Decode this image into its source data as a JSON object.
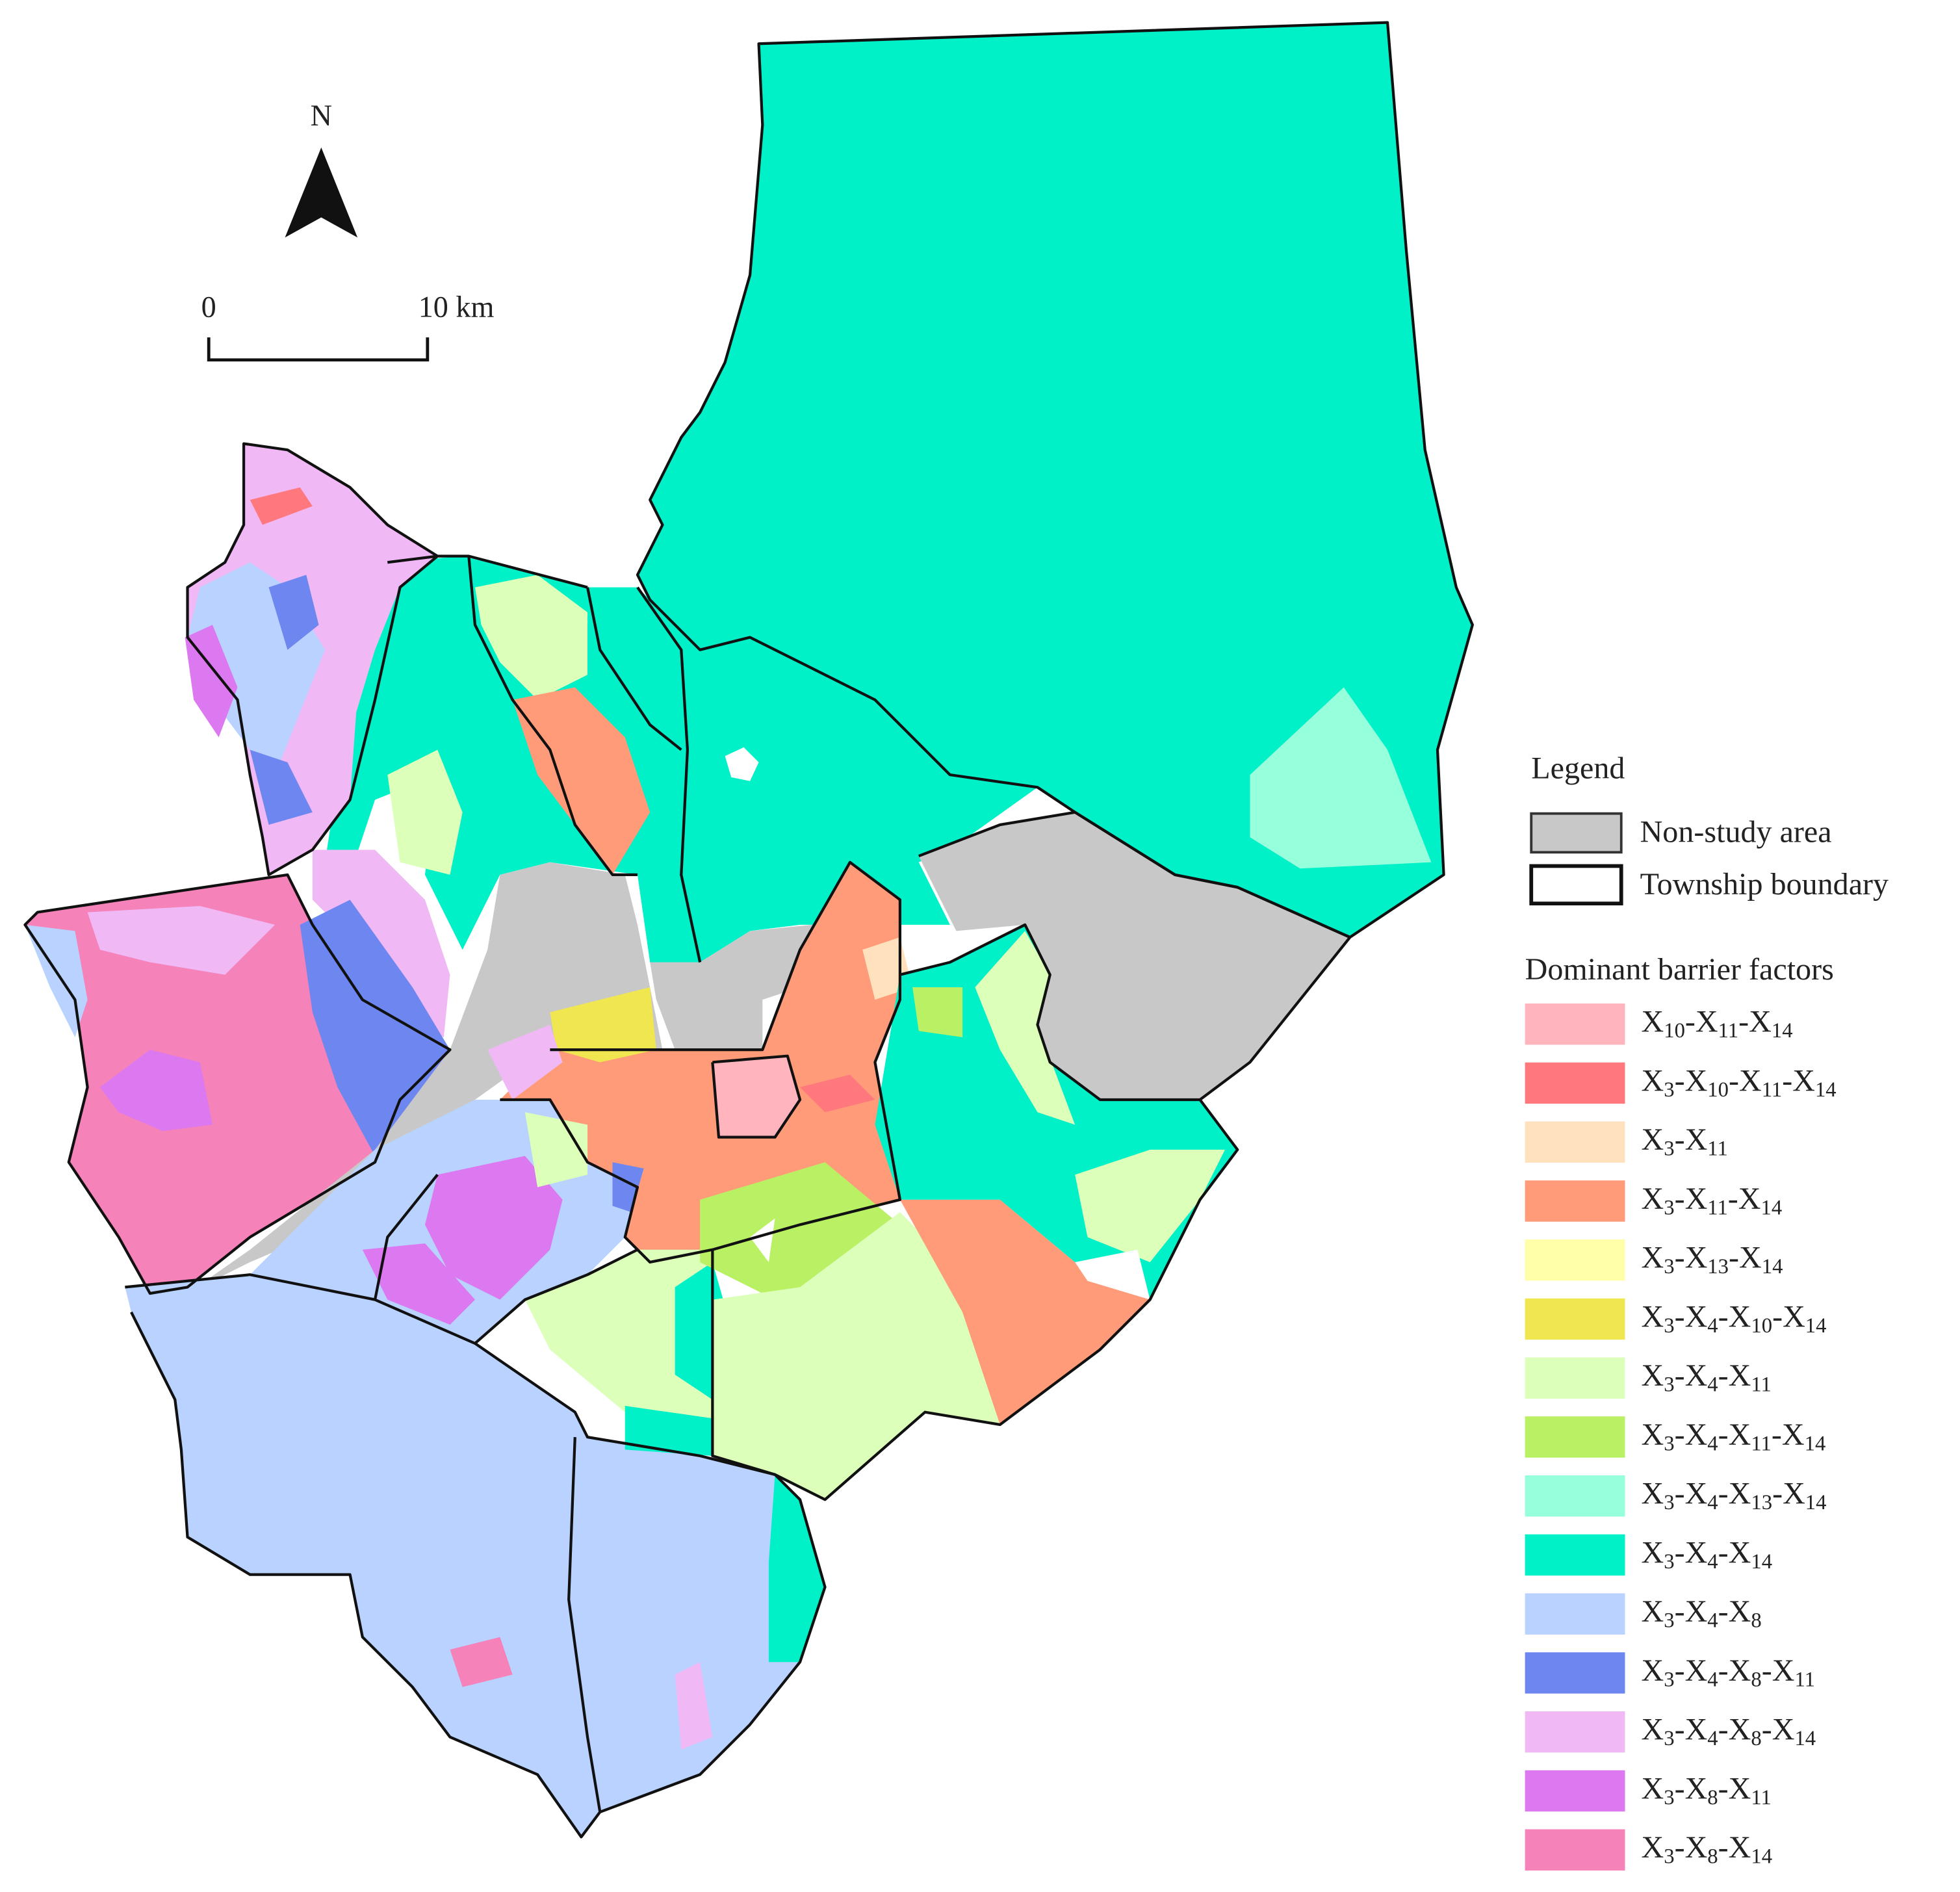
{
  "map": {
    "north_label": "N",
    "scale_bar": {
      "start_label": "0",
      "end_label": "10 km"
    },
    "legend": {
      "title": "Legend",
      "non_study": {
        "label": "Non-study area",
        "color": "#c8c8c8"
      },
      "township": {
        "label": "Township boundary"
      },
      "factors_title": "Dominant barrier factors",
      "items": [
        {
          "label": "X10-X11-X14",
          "color": "#ffb4be"
        },
        {
          "label": "X3-X10-X11-X14",
          "color": "#ff787d"
        },
        {
          "label": "X3-X11",
          "color": "#ffe1be"
        },
        {
          "label": "X3-X11-X14",
          "color": "#ff9b78"
        },
        {
          "label": "X3-X13-X14",
          "color": "#ffffaa"
        },
        {
          "label": "X3-X4-X10-X14",
          "color": "#f0e650"
        },
        {
          "label": "X3-X4-X11",
          "color": "#dcffb9"
        },
        {
          "label": "X3-X4-X11-X14",
          "color": "#b9f064"
        },
        {
          "label": "X3-X4-X13-X14",
          "color": "#96ffdc"
        },
        {
          "label": "X3-X4-X14",
          "color": "#00f0c8"
        },
        {
          "label": "X3-X4-X8",
          "color": "#b9d2ff"
        },
        {
          "label": "X3-X4-X8-X11",
          "color": "#6e87f0"
        },
        {
          "label": "X3-X4-X8-X14",
          "color": "#f0b9f5"
        },
        {
          "label": "X3-X8-X11",
          "color": "#dc78f0"
        },
        {
          "label": "X3-X8-X14",
          "color": "#f582b9"
        }
      ]
    }
  }
}
